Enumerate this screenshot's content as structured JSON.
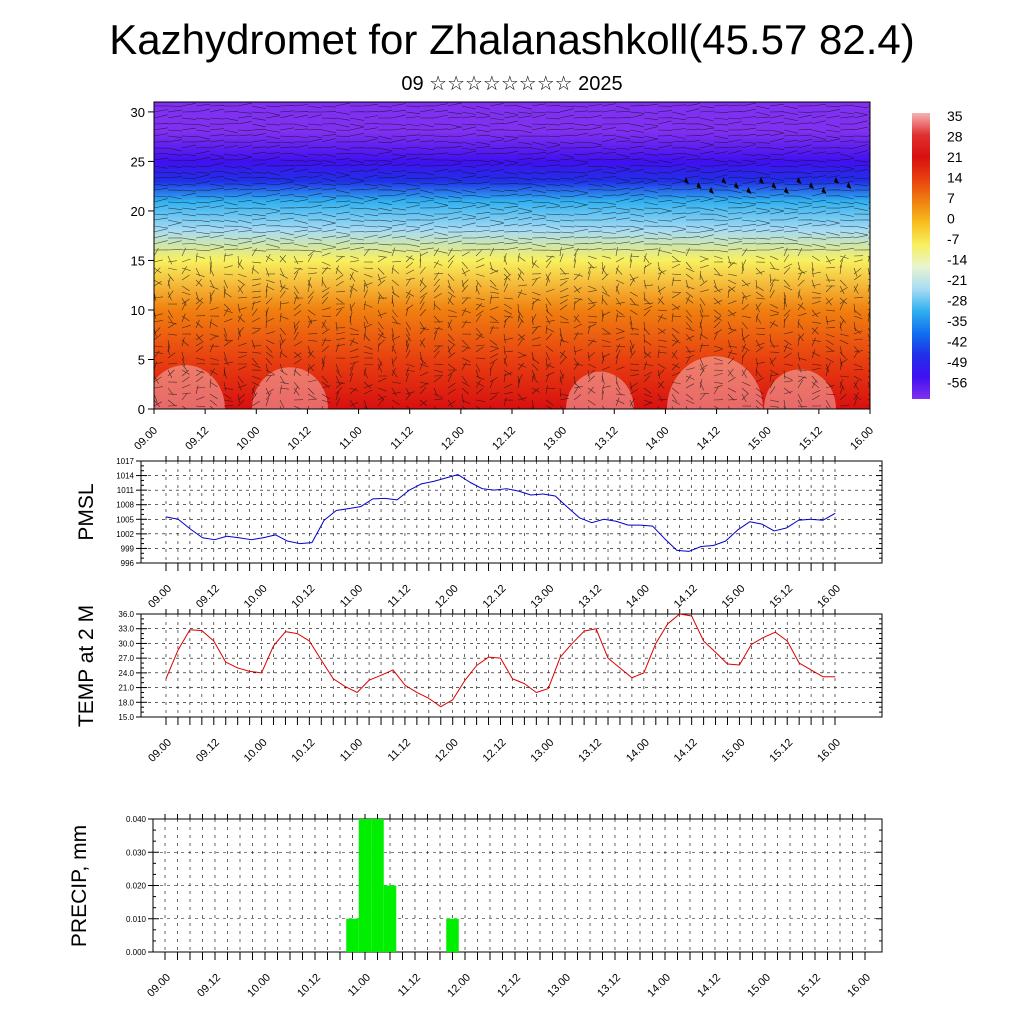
{
  "header": {
    "title": "Kazhydromet for Zhalanashkoll(45.57 82.4)",
    "subtitle": "09 ☆☆☆☆☆☆☆☆ 2025"
  },
  "colors": {
    "pmsl_line": "#0000cc",
    "temp_line": "#dd0000",
    "precip_bar": "#00ee00",
    "grid": "#000000"
  },
  "chart_data": [
    {
      "type": "heatmap",
      "name": "cross-section",
      "yticks": [
        0,
        5,
        10,
        15,
        20,
        25,
        30
      ],
      "ylim": [
        0,
        31
      ],
      "xticks": [
        "09.00",
        "09.12",
        "10.00",
        "10.12",
        "11.00",
        "11.12",
        "12.00",
        "12.12",
        "13.00",
        "13.12",
        "14.00",
        "14.12",
        "15.00",
        "15.12",
        "16.00"
      ],
      "colorbar": {
        "labels": [
          "35",
          "28",
          "21",
          "14",
          "7",
          "0",
          "-7",
          "-14",
          "-21",
          "-28",
          "-35",
          "-42",
          "-49",
          "-56"
        ],
        "colors": [
          "#f5b3b3",
          "#e03030",
          "#d81010",
          "#e84010",
          "#f08010",
          "#f8c020",
          "#f8f060",
          "#e8f4d0",
          "#a8dcf4",
          "#30b0f0",
          "#1070f0",
          "#2030e8",
          "#4010f0",
          "#8030f0"
        ]
      },
      "color_levels": [
        {
          "level": 0,
          "value": 24
        },
        {
          "level": 5,
          "value": 16
        },
        {
          "level": 10,
          "value": 5
        },
        {
          "level": 15,
          "value": -10
        },
        {
          "level": 18,
          "value": -20
        },
        {
          "level": 21,
          "value": -30
        },
        {
          "level": 23,
          "value": -42
        },
        {
          "level": 25,
          "value": -52
        },
        {
          "level": 28,
          "value": -56
        },
        {
          "level": 31,
          "value": -56
        }
      ]
    },
    {
      "type": "line",
      "ylabel": "PMSL",
      "ylim": [
        996,
        1017
      ],
      "yticks": [
        996,
        999,
        1002,
        1005,
        1008,
        1011,
        1014,
        1017
      ],
      "xticks": [
        "09.00",
        "09.12",
        "10.00",
        "10.12",
        "11.00",
        "11.12",
        "12.00",
        "12.12",
        "13.00",
        "13.12",
        "14.00",
        "14.12",
        "15.00",
        "15.12",
        "16.00"
      ],
      "series": [
        {
          "values": [
            1005.5,
            1005,
            1003,
            1001.2,
            1000.8,
            1001.5,
            1001.2,
            1000.8,
            1001.2,
            1001.8,
            1000.5,
            1000,
            1000.2,
            1004.8,
            1006.8,
            1007.2,
            1007.6,
            1009.2,
            1009.3,
            1009,
            1011,
            1012.3,
            1012.8,
            1013.5,
            1014.2,
            1012.6,
            1011.3,
            1011,
            1011.3,
            1010.8,
            1010,
            1010.2,
            1009.8,
            1007.5,
            1005.3,
            1004.3,
            1005,
            1004.6,
            1003.8,
            1003.8,
            1003.6,
            1001,
            998.6,
            998.4,
            999.4,
            999.6,
            1000.5,
            1002.8,
            1004.5,
            1004,
            1002.6,
            1003.2,
            1004.8,
            1005,
            1004.8,
            1006.2
          ]
        }
      ]
    },
    {
      "type": "line",
      "ylabel": "TEMP at 2 M",
      "ylim": [
        15,
        36
      ],
      "yticks": [
        "15.0",
        "18.0",
        "21.0",
        "24.0",
        "27.0",
        "30.0",
        "33.0",
        "36.0"
      ],
      "xticks": [
        "09.00",
        "09.12",
        "10.00",
        "10.12",
        "11.00",
        "11.12",
        "12.00",
        "12.12",
        "13.00",
        "13.12",
        "14.00",
        "14.12",
        "15.00",
        "15.12",
        "16.00"
      ],
      "series": [
        {
          "values": [
            22.8,
            28.6,
            32.8,
            32.6,
            30.5,
            26.2,
            25,
            24.3,
            24,
            29.5,
            32.4,
            32,
            30.5,
            26.6,
            22.8,
            21.2,
            20,
            22.5,
            23.5,
            24.6,
            21.5,
            20,
            18.8,
            17.1,
            18.5,
            22.4,
            25.5,
            27.2,
            27,
            22.8,
            21.8,
            20,
            20.8,
            27.2,
            30,
            32.5,
            33,
            27,
            25,
            23,
            24,
            30,
            34,
            36,
            35.6,
            30.5,
            28.2,
            25.8,
            25.6,
            29.8,
            31.2,
            32.3,
            30.5,
            26,
            24.6,
            23.2,
            23.2
          ]
        }
      ]
    },
    {
      "type": "bar",
      "ylabel": "PRECIP, mm",
      "ylim": [
        0,
        0.04
      ],
      "yticks": [
        "0.000",
        "0.010",
        "0.020",
        "0.030",
        "0.040"
      ],
      "xticks": [
        "09.00",
        "09.12",
        "10.00",
        "10.12",
        "11.00",
        "11.12",
        "12.00",
        "12.12",
        "13.00",
        "13.12",
        "14.00",
        "14.12",
        "15.00",
        "15.12",
        "16.00"
      ],
      "series": [
        {
          "values": [
            0,
            0,
            0,
            0,
            0,
            0,
            0,
            0,
            0,
            0,
            0,
            0,
            0,
            0,
            0,
            0.01,
            0.04,
            0.04,
            0.02,
            0,
            0,
            0,
            0,
            0.01,
            0,
            0,
            0,
            0,
            0,
            0,
            0,
            0,
            0,
            0,
            0,
            0,
            0,
            0,
            0,
            0,
            0,
            0,
            0,
            0,
            0,
            0,
            0,
            0,
            0,
            0,
            0,
            0,
            0,
            0,
            0,
            0,
            0
          ]
        }
      ]
    }
  ]
}
